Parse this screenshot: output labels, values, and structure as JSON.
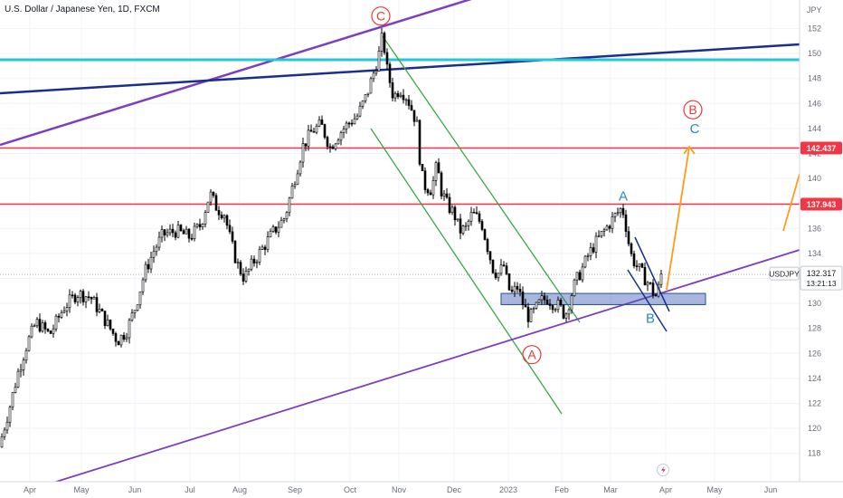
{
  "header": {
    "symbol_line": "U.S. Dollar / Japanese Yen, 1D, FXCM"
  },
  "chart_data": {
    "type": "candlestick",
    "title": "U.S. Dollar / Japanese Yen, 1D, FXCM",
    "y_unit": "JPY",
    "ylim": [
      116.5,
      153.5
    ],
    "y_ticks": [
      118,
      120,
      122,
      124,
      126,
      128,
      130,
      132,
      134,
      136,
      138,
      140,
      142,
      144,
      146,
      148,
      150,
      152
    ],
    "x_ticks": [
      "Apr",
      "May",
      "Jun",
      "Jul",
      "Aug",
      "Sep",
      "Oct",
      "Nov",
      "Dec",
      "2023",
      "Feb",
      "Mar",
      "Apr",
      "May",
      "Jun"
    ],
    "grid": true,
    "price_path": [
      [
        0,
        118.8
      ],
      [
        10,
        121.5
      ],
      [
        20,
        124.5
      ],
      [
        30,
        126.8
      ],
      [
        40,
        128.5
      ],
      [
        55,
        127.5
      ],
      [
        70,
        129.6
      ],
      [
        85,
        130.8
      ],
      [
        100,
        130.5
      ],
      [
        115,
        128.8
      ],
      [
        130,
        127.0
      ],
      [
        140,
        127.8
      ],
      [
        150,
        129.8
      ],
      [
        160,
        132.5
      ],
      [
        170,
        134.2
      ],
      [
        180,
        135.5
      ],
      [
        195,
        135.8
      ],
      [
        210,
        135.3
      ],
      [
        222,
        136.3
      ],
      [
        232,
        138.8
      ],
      [
        240,
        137.6
      ],
      [
        248,
        137.2
      ],
      [
        255,
        135.0
      ],
      [
        262,
        133.2
      ],
      [
        270,
        132.0
      ],
      [
        280,
        133.3
      ],
      [
        292,
        134.6
      ],
      [
        302,
        135.7
      ],
      [
        315,
        136.9
      ],
      [
        325,
        139.8
      ],
      [
        335,
        142.6
      ],
      [
        345,
        143.8
      ],
      [
        355,
        144.3
      ],
      [
        365,
        142.5
      ],
      [
        375,
        143.6
      ],
      [
        385,
        144.4
      ],
      [
        395,
        145.0
      ],
      [
        405,
        146.6
      ],
      [
        412,
        148.2
      ],
      [
        418,
        149.6
      ],
      [
        423,
        151.5
      ],
      [
        428,
        148.7
      ],
      [
        435,
        146.5
      ],
      [
        442,
        147.2
      ],
      [
        450,
        146.5
      ],
      [
        457,
        145.2
      ],
      [
        462,
        144.0
      ],
      [
        465,
        140.5
      ],
      [
        470,
        139.4
      ],
      [
        477,
        139.1
      ],
      [
        483,
        141.1
      ],
      [
        488,
        139.0
      ],
      [
        495,
        137.8
      ],
      [
        502,
        137.2
      ],
      [
        508,
        135.8
      ],
      [
        515,
        136.0
      ],
      [
        522,
        137.2
      ],
      [
        528,
        136.8
      ],
      [
        533,
        136.3
      ],
      [
        538,
        134.8
      ],
      [
        545,
        132.8
      ],
      [
        550,
        132.3
      ],
      [
        557,
        133.0
      ],
      [
        562,
        131.2
      ],
      [
        566,
        130.8
      ],
      [
        572,
        131.3
      ],
      [
        578,
        130.0
      ],
      [
        585,
        128.8
      ],
      [
        592,
        129.5
      ],
      [
        598,
        130.2
      ],
      [
        605,
        130.4
      ],
      [
        612,
        130.0
      ],
      [
        618,
        129.8
      ],
      [
        625,
        129.0
      ],
      [
        630,
        130.3
      ],
      [
        636,
        131.7
      ],
      [
        642,
        132.5
      ],
      [
        650,
        133.8
      ],
      [
        658,
        134.8
      ],
      [
        665,
        135.5
      ],
      [
        672,
        136.2
      ],
      [
        680,
        137.0
      ],
      [
        688,
        137.7
      ],
      [
        692,
        136.2
      ],
      [
        697,
        134.0
      ],
      [
        702,
        133.2
      ],
      [
        708,
        132.6
      ],
      [
        713,
        132.0
      ],
      [
        718,
        131.5
      ],
      [
        722,
        130.9
      ],
      [
        726,
        130.5
      ],
      [
        731,
        132.3
      ]
    ],
    "annotations": [
      {
        "text": "C",
        "price": 153.0,
        "style": "circled"
      },
      {
        "text": "A",
        "price": 125.9,
        "style": "circled"
      },
      {
        "text": "B",
        "price": 145.5,
        "style": "circled"
      },
      {
        "text": "C",
        "price": 144.0,
        "style": "plain"
      },
      {
        "text": "A",
        "price": 138.6,
        "style": "plain"
      },
      {
        "text": "B",
        "price": 128.8,
        "style": "plain"
      }
    ],
    "horizontal_levels": [
      {
        "price": 142.437,
        "label": "142.437",
        "color": "#f23645"
      },
      {
        "price": 137.943,
        "label": "137.943",
        "color": "#f23645"
      },
      {
        "price": 149.5,
        "color": "#26c6da"
      }
    ],
    "last_price": {
      "symbol": "USDJPY",
      "value": "132.317",
      "countdown": "13:21:13"
    },
    "support_zone": [
      130.8,
      129.9
    ],
    "colors": {
      "up": "#ffffff",
      "down": "#000000",
      "channel_purple": "#7e3fbf",
      "trend_navy": "#1a2f8c",
      "channel_green": "#3aa845",
      "projection_orange": "#ff9c1a",
      "label_red": "#e53935",
      "label_blue": "#2a87c6"
    }
  }
}
